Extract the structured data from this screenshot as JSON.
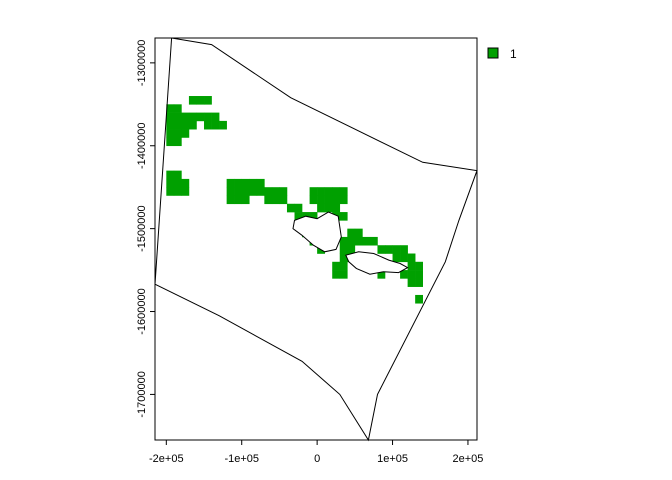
{
  "chart_data": {
    "type": "raster-map",
    "title": "",
    "xlabel": "",
    "ylabel": "",
    "xlim": [
      -215000,
      212000
    ],
    "ylim": [
      -1755000,
      -1270000
    ],
    "x_ticks": [
      -200000,
      -100000,
      0,
      100000,
      200000
    ],
    "x_tick_labels": [
      "-2e+05",
      "-1e+05",
      "0",
      "1e+05",
      "2e+05"
    ],
    "y_ticks": [
      -1300000,
      -1400000,
      -1500000,
      -1600000,
      -1700000
    ],
    "y_tick_labels": [
      "-1300000",
      "-1400000",
      "-1500000",
      "-1600000",
      "-1700000"
    ],
    "cell_size": 10000,
    "fill_color": "#00A000",
    "legend": {
      "position": "top-right",
      "entries": [
        {
          "label": "1",
          "color": "#00A000"
        }
      ]
    },
    "raster_cells": [
      [
        -200000,
        -1360000
      ],
      [
        -190000,
        -1360000
      ],
      [
        -170000,
        -1350000
      ],
      [
        -160000,
        -1350000
      ],
      [
        -150000,
        -1350000
      ],
      [
        -200000,
        -1370000
      ],
      [
        -190000,
        -1370000
      ],
      [
        -180000,
        -1370000
      ],
      [
        -170000,
        -1370000
      ],
      [
        -160000,
        -1370000
      ],
      [
        -150000,
        -1370000
      ],
      [
        -140000,
        -1370000
      ],
      [
        -200000,
        -1380000
      ],
      [
        -190000,
        -1380000
      ],
      [
        -180000,
        -1380000
      ],
      [
        -170000,
        -1380000
      ],
      [
        -150000,
        -1380000
      ],
      [
        -140000,
        -1380000
      ],
      [
        -130000,
        -1380000
      ],
      [
        -200000,
        -1390000
      ],
      [
        -190000,
        -1390000
      ],
      [
        -180000,
        -1390000
      ],
      [
        -200000,
        -1400000
      ],
      [
        -190000,
        -1400000
      ],
      [
        -200000,
        -1440000
      ],
      [
        -190000,
        -1440000
      ],
      [
        -200000,
        -1450000
      ],
      [
        -190000,
        -1450000
      ],
      [
        -180000,
        -1450000
      ],
      [
        -200000,
        -1460000
      ],
      [
        -190000,
        -1460000
      ],
      [
        -180000,
        -1460000
      ],
      [
        -120000,
        -1450000
      ],
      [
        -110000,
        -1450000
      ],
      [
        -100000,
        -1450000
      ],
      [
        -90000,
        -1450000
      ],
      [
        -80000,
        -1450000
      ],
      [
        -120000,
        -1460000
      ],
      [
        -110000,
        -1460000
      ],
      [
        -100000,
        -1460000
      ],
      [
        -90000,
        -1460000
      ],
      [
        -80000,
        -1460000
      ],
      [
        -70000,
        -1460000
      ],
      [
        -60000,
        -1460000
      ],
      [
        -50000,
        -1460000
      ],
      [
        -120000,
        -1470000
      ],
      [
        -110000,
        -1470000
      ],
      [
        -100000,
        -1470000
      ],
      [
        -70000,
        -1470000
      ],
      [
        -60000,
        -1470000
      ],
      [
        -50000,
        -1470000
      ],
      [
        -40000,
        -1480000
      ],
      [
        -30000,
        -1480000
      ],
      [
        -30000,
        -1490000
      ],
      [
        -20000,
        -1490000
      ],
      [
        -10000,
        -1490000
      ],
      [
        -10000,
        -1460000
      ],
      [
        0,
        -1460000
      ],
      [
        10000,
        -1460000
      ],
      [
        20000,
        -1460000
      ],
      [
        30000,
        -1460000
      ],
      [
        -10000,
        -1470000
      ],
      [
        0,
        -1470000
      ],
      [
        10000,
        -1470000
      ],
      [
        20000,
        -1470000
      ],
      [
        30000,
        -1470000
      ],
      [
        0,
        -1480000
      ],
      [
        10000,
        -1480000
      ],
      [
        20000,
        -1480000
      ],
      [
        20000,
        -1490000
      ],
      [
        30000,
        -1490000
      ],
      [
        -30000,
        -1500000
      ],
      [
        -20000,
        -1510000
      ],
      [
        -10000,
        -1520000
      ],
      [
        0,
        -1530000
      ],
      [
        40000,
        -1510000
      ],
      [
        50000,
        -1510000
      ],
      [
        30000,
        -1520000
      ],
      [
        40000,
        -1520000
      ],
      [
        50000,
        -1520000
      ],
      [
        60000,
        -1520000
      ],
      [
        70000,
        -1520000
      ],
      [
        30000,
        -1530000
      ],
      [
        40000,
        -1530000
      ],
      [
        80000,
        -1530000
      ],
      [
        90000,
        -1530000
      ],
      [
        100000,
        -1530000
      ],
      [
        110000,
        -1530000
      ],
      [
        30000,
        -1540000
      ],
      [
        40000,
        -1540000
      ],
      [
        100000,
        -1540000
      ],
      [
        110000,
        -1540000
      ],
      [
        120000,
        -1540000
      ],
      [
        20000,
        -1550000
      ],
      [
        30000,
        -1550000
      ],
      [
        60000,
        -1550000
      ],
      [
        70000,
        -1550000
      ],
      [
        120000,
        -1550000
      ],
      [
        130000,
        -1550000
      ],
      [
        20000,
        -1560000
      ],
      [
        30000,
        -1560000
      ],
      [
        80000,
        -1560000
      ],
      [
        110000,
        -1560000
      ],
      [
        120000,
        -1560000
      ],
      [
        130000,
        -1560000
      ],
      [
        120000,
        -1570000
      ],
      [
        130000,
        -1570000
      ],
      [
        130000,
        -1590000
      ]
    ],
    "outer_polygon": [
      [
        -193000,
        -1270000
      ],
      [
        -140000,
        -1278000
      ],
      [
        -35000,
        -1342000
      ],
      [
        140000,
        -1420000
      ],
      [
        212000,
        -1430000
      ],
      [
        188000,
        -1490000
      ],
      [
        170000,
        -1540000
      ],
      [
        80000,
        -1700000
      ],
      [
        68000,
        -1755000
      ],
      [
        30000,
        -1700000
      ],
      [
        -20000,
        -1660000
      ],
      [
        -130000,
        -1605000
      ],
      [
        -215000,
        -1567000
      ],
      [
        -193000,
        -1270000
      ]
    ],
    "inner_polygons": [
      [
        [
          -30000,
          -1490000
        ],
        [
          -15000,
          -1485000
        ],
        [
          0,
          -1488000
        ],
        [
          15000,
          -1480000
        ],
        [
          28000,
          -1485000
        ],
        [
          32000,
          -1510000
        ],
        [
          25000,
          -1525000
        ],
        [
          10000,
          -1528000
        ],
        [
          -5000,
          -1520000
        ],
        [
          -20000,
          -1508000
        ],
        [
          -32000,
          -1500000
        ],
        [
          -30000,
          -1490000
        ]
      ],
      [
        [
          38000,
          -1532000
        ],
        [
          55000,
          -1528000
        ],
        [
          75000,
          -1530000
        ],
        [
          95000,
          -1538000
        ],
        [
          110000,
          -1542000
        ],
        [
          120000,
          -1547000
        ],
        [
          108000,
          -1553000
        ],
        [
          88000,
          -1552000
        ],
        [
          70000,
          -1555000
        ],
        [
          52000,
          -1548000
        ],
        [
          42000,
          -1540000
        ],
        [
          38000,
          -1532000
        ]
      ]
    ]
  }
}
